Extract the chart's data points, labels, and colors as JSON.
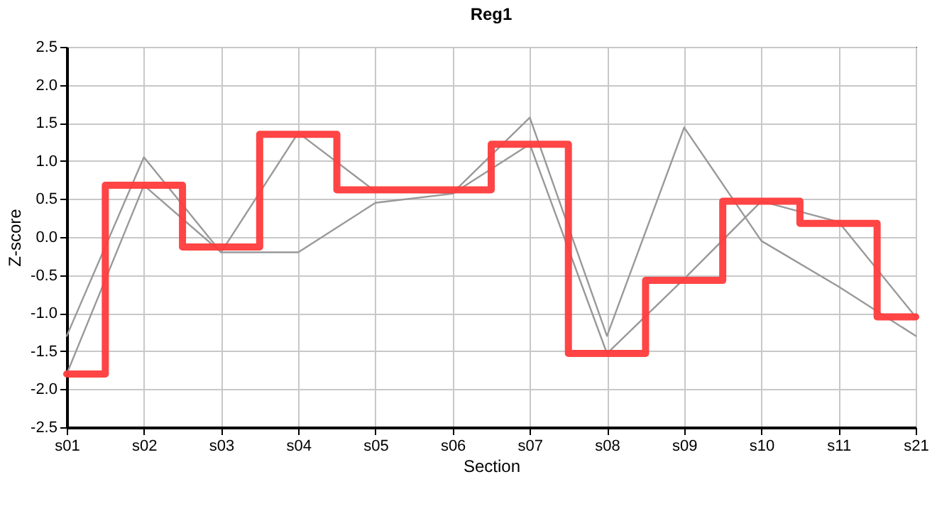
{
  "chart_data": {
    "type": "line",
    "title": "Reg1",
    "xlabel": "Section",
    "ylabel": "Z-score",
    "categories": [
      "s01",
      "s02",
      "s03",
      "s04",
      "s05",
      "s06",
      "s07",
      "s08",
      "s09",
      "s10",
      "s11",
      "s21"
    ],
    "series": [
      {
        "color": "#999999",
        "values": [
          -1.3,
          1.05,
          -0.2,
          1.37,
          0.6,
          0.58,
          1.57,
          -1.3,
          1.44,
          -0.05,
          -0.65,
          -1.3
        ]
      },
      {
        "color": "#999999",
        "values": [
          -1.8,
          0.68,
          -0.2,
          -0.2,
          0.45,
          0.57,
          1.22,
          -1.53,
          -0.55,
          0.47,
          0.2,
          -1.05
        ]
      },
      {
        "type": "step",
        "color": "#ff3b3b",
        "values": [
          -1.8,
          0.68,
          -0.13,
          1.35,
          0.62,
          0.62,
          1.22,
          -1.53,
          -0.57,
          0.47,
          0.18,
          -1.05
        ]
      }
    ],
    "ylim": [
      -2.5,
      2.5
    ],
    "yticks": [
      -2.5,
      {
        "value": -2,
        "label": "-2.0"
      },
      -1.5,
      {
        "value": -1,
        "label": "-1.0"
      },
      -0.5,
      {
        "value": 0,
        "label": "0.0"
      },
      0.5,
      {
        "value": 1,
        "label": "1.0"
      },
      1.5,
      {
        "value": 2,
        "label": "2.0"
      },
      2.5
    ],
    "grid": true
  }
}
